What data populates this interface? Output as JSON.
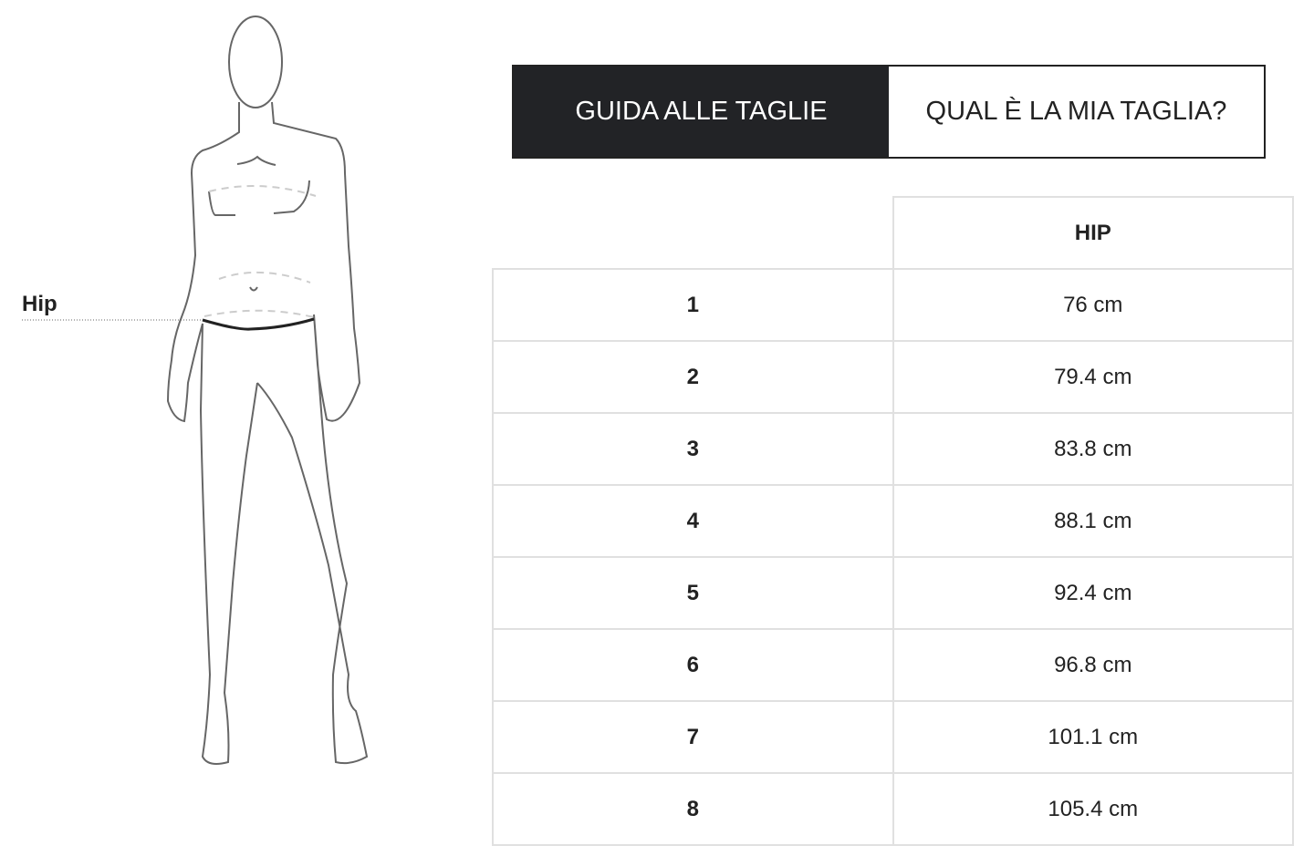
{
  "figure": {
    "measure_label": "Hip",
    "highlight_color": "#222222"
  },
  "tabs": [
    {
      "label": "GUIDA ALLE TAGLIE",
      "active": true
    },
    {
      "label": "QUAL È LA MIA TAGLIA?",
      "active": false
    }
  ],
  "table": {
    "header": [
      "",
      "HIP"
    ],
    "rows": [
      {
        "size": "1",
        "hip": "76 cm"
      },
      {
        "size": "2",
        "hip": "79.4 cm"
      },
      {
        "size": "3",
        "hip": "83.8 cm"
      },
      {
        "size": "4",
        "hip": "88.1 cm"
      },
      {
        "size": "5",
        "hip": "92.4 cm"
      },
      {
        "size": "6",
        "hip": "96.8 cm"
      },
      {
        "size": "7",
        "hip": "101.1 cm"
      },
      {
        "size": "8",
        "hip": "105.4 cm"
      }
    ]
  }
}
